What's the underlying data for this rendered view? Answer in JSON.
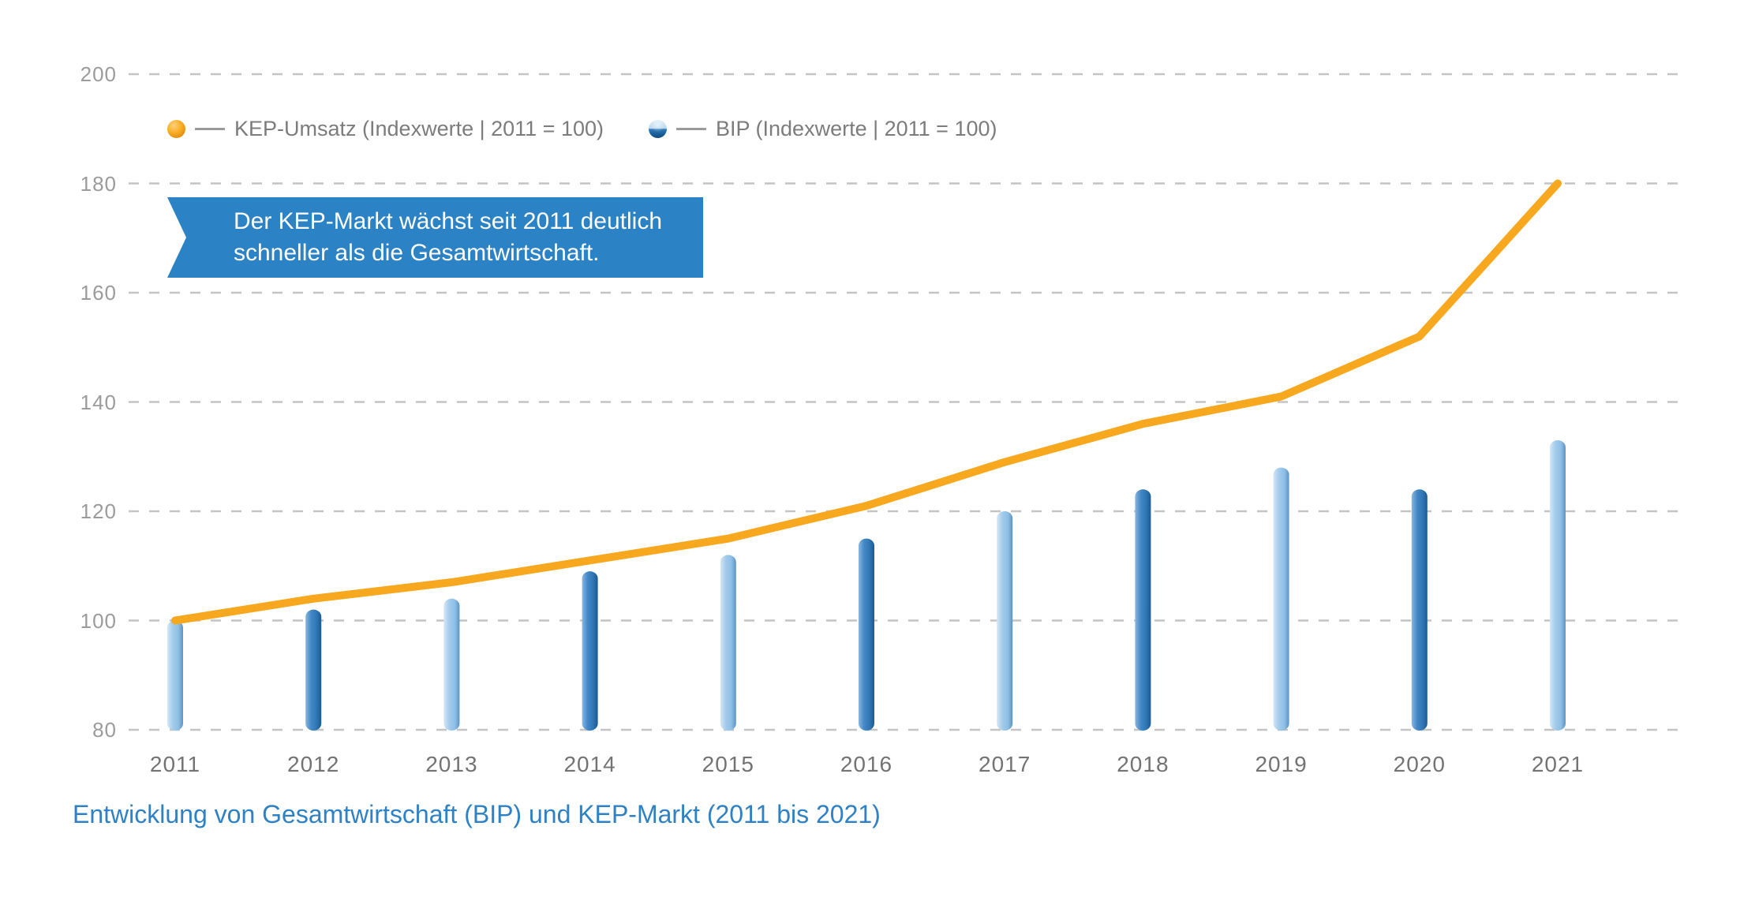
{
  "caption": "Entwicklung von Gesamtwirtschaft (BIP) und KEP-Markt (2011 bis 2021)",
  "callout": {
    "lines": [
      "Der KEP-Markt wächst seit 2011 deutlich",
      "schneller als die Gesamtwirtschaft."
    ],
    "background_color": "#2B82C4",
    "text_color": "#FFFFFF"
  },
  "chart_data": {
    "type": "bar",
    "subtype": "combo: vertical bars (BIP) + line (KEP-Umsatz)",
    "title": "Entwicklung von Gesamtwirtschaft (BIP) und KEP-Markt (2011 bis 2021)",
    "categories": [
      "2011",
      "2012",
      "2013",
      "2014",
      "2015",
      "2016",
      "2017",
      "2018",
      "2019",
      "2020",
      "2021"
    ],
    "series": [
      {
        "name": "KEP-Umsatz (Indexwerte | 2011 = 100)",
        "type": "line",
        "color": "#F8A81F",
        "values": [
          100,
          104,
          107,
          111,
          115,
          121,
          129,
          136,
          141,
          152,
          180
        ]
      },
      {
        "name": "BIP (Indexwerte | 2011 = 100)",
        "type": "bar",
        "color_light": "#9CC7E9",
        "color_dark": "#3C84C3",
        "values": [
          100,
          102,
          104,
          109,
          112,
          115,
          120,
          124,
          128,
          124,
          133
        ]
      }
    ],
    "xlabel": "",
    "ylabel": "",
    "ylim": [
      80,
      200
    ],
    "yticks": [
      80,
      100,
      120,
      140,
      160,
      180,
      200
    ],
    "grid": "horizontal dashed gray lines at every y-tick",
    "legend_position": "top-left inside plot",
    "annotation": "Der KEP-Markt wächst seit 2011 deutlich schneller als die Gesamtwirtschaft."
  },
  "colors": {
    "grid": "#C4C4C4",
    "y_tick_text": "#9B9B9B",
    "x_tick_text": "#737373",
    "legend_text": "#7C7C7C",
    "caption_text": "#2E81C4",
    "line_orange": "#F8A81F",
    "bar_light": "#9CC7E9",
    "bar_dark": "#3C84C3",
    "callout_blue": "#2B82C4"
  }
}
